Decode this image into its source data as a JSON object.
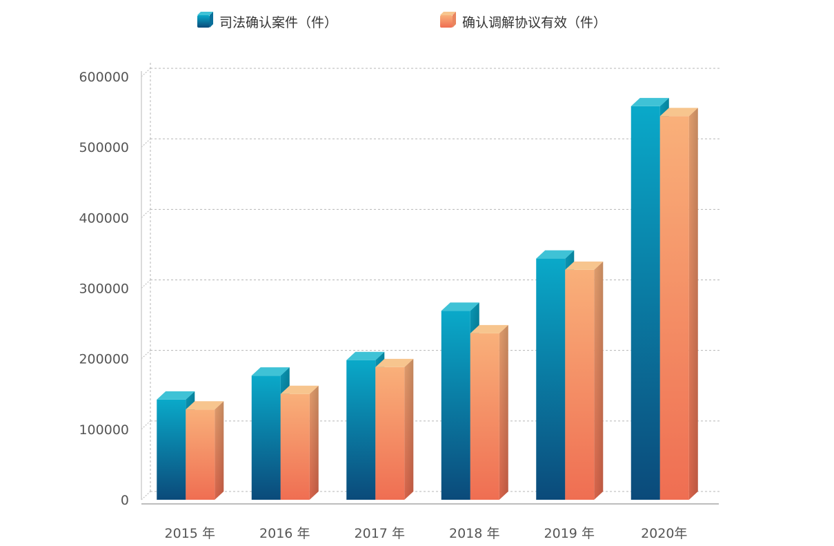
{
  "chart_data": {
    "type": "bar",
    "categories": [
      "2015 年",
      "2016 年",
      "2017 年",
      "2018 年",
      "2019 年",
      "2020年"
    ],
    "series": [
      {
        "name": "司法确认案件（件）",
        "values": [
          142000,
          176000,
          198000,
          268000,
          342000,
          558000
        ],
        "color_top": "#0aa9c9",
        "color_bottom": "#0b4a7a",
        "color_cap": "#3fc2d6"
      },
      {
        "name": "确认调解协议有效（件）",
        "values": [
          128000,
          150000,
          188000,
          236000,
          326000,
          544000
        ],
        "color_top": "#f9b07a",
        "color_bottom": "#ef6e52",
        "color_cap": "#f7c58e"
      }
    ],
    "yticks": [
      0,
      100000,
      200000,
      300000,
      400000,
      500000,
      600000
    ],
    "ylim": [
      0,
      600000
    ],
    "grid": true,
    "legend_position": "top-center",
    "title": "",
    "xlabel": "",
    "ylabel": ""
  }
}
